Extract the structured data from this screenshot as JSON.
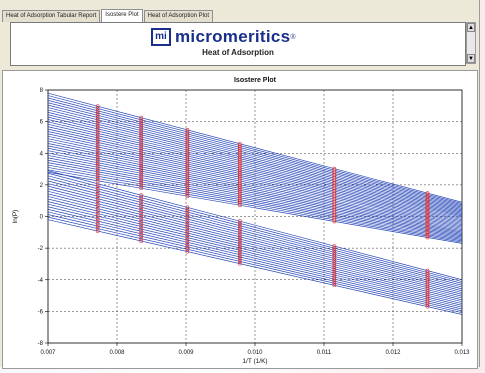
{
  "tabs": [
    {
      "label": "Heat of Adsorption Tabular Report"
    },
    {
      "label": "Isostere Plot"
    },
    {
      "label": "Heat of Adsorption Plot"
    }
  ],
  "report": {
    "logo_mark": "mi",
    "brand": "micromeritics",
    "reg_mark": "®",
    "title": "Heat of Adsorption"
  },
  "chart_data": {
    "type": "line",
    "title": "Isostere Plot",
    "xlabel": "1/T (1/K)",
    "ylabel": "ln(P)",
    "xlim": [
      0.007,
      0.013
    ],
    "ylim": [
      -8,
      8
    ],
    "xticks": [
      "0.007",
      "0.008",
      "0.009",
      "0.010",
      "0.011",
      "0.012",
      "0.013"
    ],
    "yticks": [
      "8",
      "6",
      "4",
      "2",
      "0",
      "-2",
      "-4",
      "-6",
      "-8"
    ],
    "grid": true,
    "line_color": "#2747b8",
    "marker_color": "#d8343b",
    "series_groups": [
      {
        "count": 34,
        "x_range": [
          0.007,
          0.013
        ],
        "intercept_range": [
          7.8,
          2.8
        ],
        "slope_range": [
          -1150,
          -750
        ]
      },
      {
        "count": 20,
        "x_range": [
          0.007,
          0.013
        ],
        "intercept_range": [
          2.9,
          -0.2
        ],
        "slope_range": [
          -1150,
          -1000
        ]
      }
    ],
    "marker_x": [
      0.00772,
      0.00835,
      0.00902,
      0.00978,
      0.01115,
      0.0125
    ]
  }
}
